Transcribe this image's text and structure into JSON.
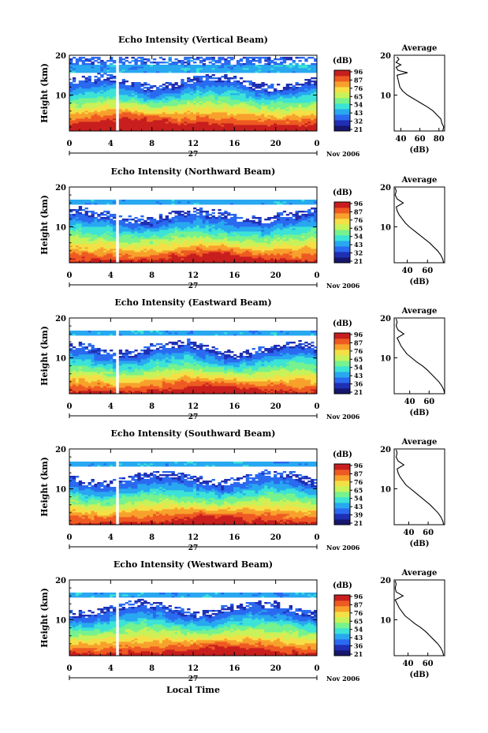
{
  "chart_data": {
    "type": "heatmap",
    "figure_xlabel": "Local Time",
    "date_day": "27",
    "date_month_year": "Nov 2006",
    "x_ticks": [
      "0",
      "4",
      "8",
      "12",
      "16",
      "20",
      "0"
    ],
    "xlim": [
      0,
      24
    ],
    "ylim": [
      1,
      20
    ],
    "y_ticks": [
      "20",
      "10"
    ],
    "ylabel": "Height (km)",
    "colorbar_unit": "(dB)",
    "profile_title": "Average",
    "profile_xlabel": "(dB)",
    "colorscale": [
      "#16166e",
      "#1f2fb4",
      "#2a6af0",
      "#28a8f0",
      "#3ce3d6",
      "#76f28e",
      "#c8f25a",
      "#f4e046",
      "#f8a02c",
      "#ee5a22",
      "#c81e1e"
    ],
    "panels": [
      {
        "title": "Echo Intensity (Vertical Beam)",
        "colorbar_ticks": [
          "96",
          "87",
          "76",
          "65",
          "54",
          "43",
          "32",
          "21"
        ],
        "profile_x_ticks": [
          "40",
          "60",
          "80"
        ],
        "profile_xlim": [
          33,
          86
        ],
        "profile": [
          [
            84,
            1
          ],
          [
            85,
            2
          ],
          [
            83,
            3
          ],
          [
            82,
            4
          ],
          [
            78,
            5
          ],
          [
            74,
            6
          ],
          [
            68,
            7
          ],
          [
            61,
            8
          ],
          [
            54,
            9
          ],
          [
            47,
            10
          ],
          [
            42,
            11
          ],
          [
            39,
            12
          ],
          [
            38,
            13
          ],
          [
            37,
            14
          ],
          [
            36,
            15
          ],
          [
            47,
            15.6
          ],
          [
            37,
            16.2
          ],
          [
            35,
            17
          ],
          [
            40,
            17.6
          ],
          [
            35,
            18.2
          ],
          [
            38,
            19
          ],
          [
            36,
            19.6
          ]
        ],
        "cloud_top_km": 12.5,
        "layer_km": [
          15.5,
          17.5
        ],
        "level": 1.05
      },
      {
        "title": "Echo Intensity (Northward Beam)",
        "colorbar_ticks": [
          "96",
          "87",
          "76",
          "65",
          "54",
          "43",
          "32",
          "21"
        ],
        "profile_x_ticks": [
          "40",
          "60"
        ],
        "profile_xlim": [
          27,
          77
        ],
        "profile": [
          [
            76,
            1
          ],
          [
            75,
            2
          ],
          [
            73,
            3
          ],
          [
            70,
            4
          ],
          [
            66,
            5
          ],
          [
            62,
            6
          ],
          [
            57,
            7
          ],
          [
            52,
            8
          ],
          [
            47,
            9
          ],
          [
            42,
            10
          ],
          [
            38,
            11
          ],
          [
            35,
            12
          ],
          [
            32,
            13
          ],
          [
            30,
            14
          ],
          [
            29,
            15
          ],
          [
            36,
            16
          ],
          [
            30,
            17
          ],
          [
            28,
            18
          ],
          [
            29,
            19
          ],
          [
            28,
            19.8
          ]
        ],
        "cloud_top_km": 12.0,
        "layer_km": [
          15.7,
          16.8
        ],
        "level": 0.95
      },
      {
        "title": "Echo Intensity (Eastward Beam)",
        "colorbar_ticks": [
          "96",
          "87",
          "76",
          "65",
          "54",
          "43",
          "36",
          "21"
        ],
        "profile_x_ticks": [
          "40",
          "60"
        ],
        "profile_xlim": [
          24,
          76
        ],
        "profile": [
          [
            76,
            1
          ],
          [
            75,
            2
          ],
          [
            73,
            3
          ],
          [
            70,
            4
          ],
          [
            66,
            5
          ],
          [
            62,
            6
          ],
          [
            58,
            7
          ],
          [
            53,
            8
          ],
          [
            47,
            9
          ],
          [
            42,
            10
          ],
          [
            37,
            11
          ],
          [
            34,
            12
          ],
          [
            31,
            13
          ],
          [
            29,
            14
          ],
          [
            27,
            15
          ],
          [
            34,
            16
          ],
          [
            28,
            17
          ],
          [
            26,
            18
          ],
          [
            27,
            19
          ],
          [
            26,
            19.8
          ]
        ],
        "cloud_top_km": 11.5,
        "layer_km": [
          15.8,
          16.8
        ],
        "level": 0.95
      },
      {
        "title": "Echo Intensity (Southward Beam)",
        "colorbar_ticks": [
          "96",
          "87",
          "76",
          "65",
          "54",
          "43",
          "39",
          "21"
        ],
        "profile_x_ticks": [
          "40",
          "60"
        ],
        "profile_xlim": [
          25,
          77
        ],
        "profile": [
          [
            76,
            1
          ],
          [
            75,
            2
          ],
          [
            73,
            3
          ],
          [
            70,
            4
          ],
          [
            66,
            5
          ],
          [
            62,
            6
          ],
          [
            57,
            7
          ],
          [
            52,
            8
          ],
          [
            47,
            9
          ],
          [
            42,
            10
          ],
          [
            37,
            11
          ],
          [
            34,
            12
          ],
          [
            31,
            13
          ],
          [
            29,
            14
          ],
          [
            28,
            15
          ],
          [
            35,
            16
          ],
          [
            29,
            17
          ],
          [
            27,
            18
          ],
          [
            28,
            19
          ],
          [
            27,
            19.8
          ]
        ],
        "cloud_top_km": 11.8,
        "layer_km": [
          15.8,
          16.9
        ],
        "level": 0.95
      },
      {
        "title": "Echo Intensity (Westward Beam)",
        "colorbar_ticks": [
          "96",
          "87",
          "76",
          "65",
          "54",
          "43",
          "36",
          "21"
        ],
        "profile_x_ticks": [
          "40",
          "60"
        ],
        "profile_xlim": [
          26,
          77
        ],
        "profile": [
          [
            76,
            1
          ],
          [
            75,
            2
          ],
          [
            73,
            3
          ],
          [
            70,
            4
          ],
          [
            66,
            5
          ],
          [
            62,
            6
          ],
          [
            58,
            7
          ],
          [
            53,
            8
          ],
          [
            47,
            9
          ],
          [
            42,
            10
          ],
          [
            37,
            11
          ],
          [
            34,
            12
          ],
          [
            31,
            13
          ],
          [
            29,
            14
          ],
          [
            27,
            15
          ],
          [
            35,
            16
          ],
          [
            28,
            17
          ],
          [
            27,
            18
          ],
          [
            28,
            19
          ],
          [
            27,
            19.8
          ]
        ],
        "cloud_top_km": 12.0,
        "layer_km": [
          15.8,
          17.0
        ],
        "level": 0.95
      }
    ]
  }
}
